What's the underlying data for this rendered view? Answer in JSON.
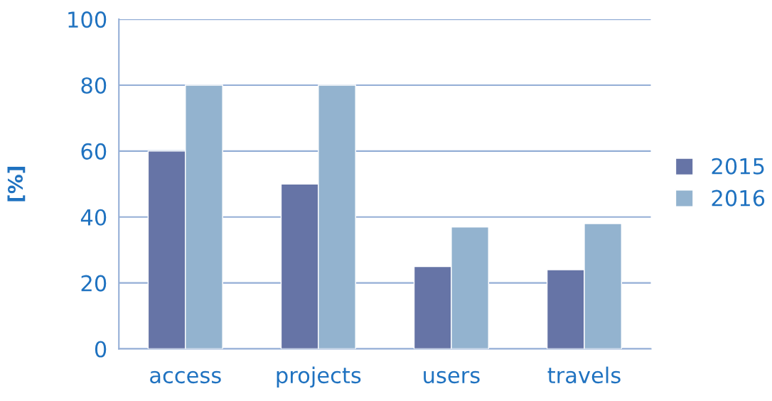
{
  "chart_data": {
    "type": "bar",
    "ylabel": "[%]",
    "categories": [
      "access",
      "projects",
      "users",
      "travels"
    ],
    "series": [
      {
        "name": "2015",
        "color": "#6674a6",
        "values": [
          60,
          50,
          25,
          24
        ]
      },
      {
        "name": "2016",
        "color": "#93b3cf",
        "values": [
          80,
          80,
          37,
          38
        ]
      }
    ],
    "ylim": [
      0,
      100
    ],
    "yticks": [
      0,
      20,
      40,
      60,
      80,
      100
    ],
    "grid": "y",
    "legend": "right"
  }
}
